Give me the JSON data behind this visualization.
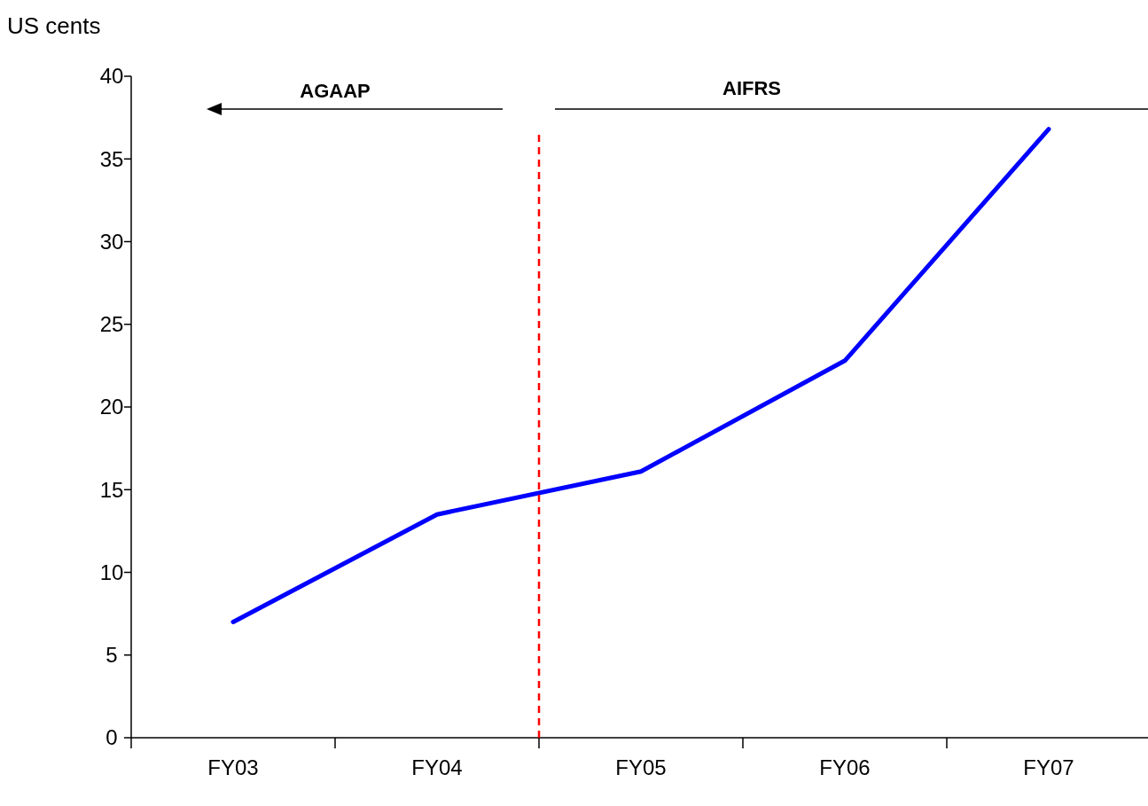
{
  "chart_data": {
    "type": "line",
    "ylabel": "US cents",
    "categories": [
      "FY03",
      "FY04",
      "FY05",
      "FY06",
      "FY07"
    ],
    "series": [
      {
        "color": "#0000ff",
        "values": [
          7.0,
          13.5,
          16.1,
          22.8,
          36.8
        ]
      }
    ],
    "ylim": [
      0,
      40
    ],
    "yticks": [
      0,
      5,
      10,
      15,
      20,
      25,
      30,
      35,
      40
    ],
    "grid": false,
    "marker": "none",
    "line_style": "solid",
    "annotations": [
      "AGAAP",
      "AIFRS"
    ]
  }
}
